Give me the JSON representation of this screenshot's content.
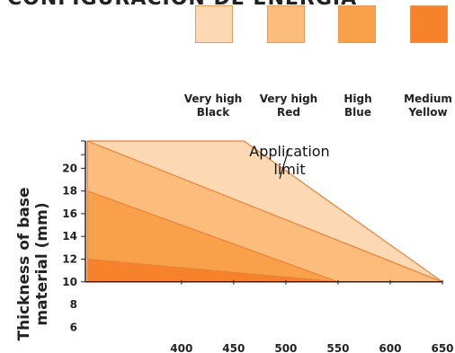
{
  "header": {
    "title": "CONFIGURACION DE ENERGIA"
  },
  "legend": [
    {
      "label": "Very high\nBlack",
      "color": "#fcd9b3"
    },
    {
      "label": "Very high\nRed",
      "color": "#fbbc7c"
    },
    {
      "label": "High\nBlue",
      "color": "#f9a14a"
    },
    {
      "label": "Medium\nYellow",
      "color": "#f6822c"
    }
  ],
  "chart_data": {
    "type": "area",
    "ylabel": "Thickness of base\nmaterial (mm)",
    "xlabel": "",
    "x_ticks": [
      400,
      450,
      500,
      550,
      600,
      650
    ],
    "y_ticks": [
      6,
      8,
      10,
      12,
      14,
      16,
      18,
      20
    ],
    "xlim": [
      308,
      650
    ],
    "ylim": [
      5,
      22.4
    ],
    "annotation": "Application\nlimit",
    "series": [
      {
        "name": "Very high Black",
        "color": "#fcd9b3",
        "top": [
          [
            310,
            22.4
          ],
          [
            460,
            22.4
          ],
          [
            650,
            10
          ]
        ]
      },
      {
        "name": "Very high Red",
        "color": "#fbbc7c",
        "top": [
          [
            310,
            22.4
          ],
          [
            650,
            10
          ]
        ]
      },
      {
        "name": "High Blue",
        "color": "#f9a14a",
        "top": [
          [
            310,
            18
          ],
          [
            550,
            10
          ]
        ]
      },
      {
        "name": "Medium Yellow",
        "color": "#f6822c",
        "top": [
          [
            310,
            12
          ],
          [
            550,
            10
          ]
        ]
      }
    ]
  }
}
